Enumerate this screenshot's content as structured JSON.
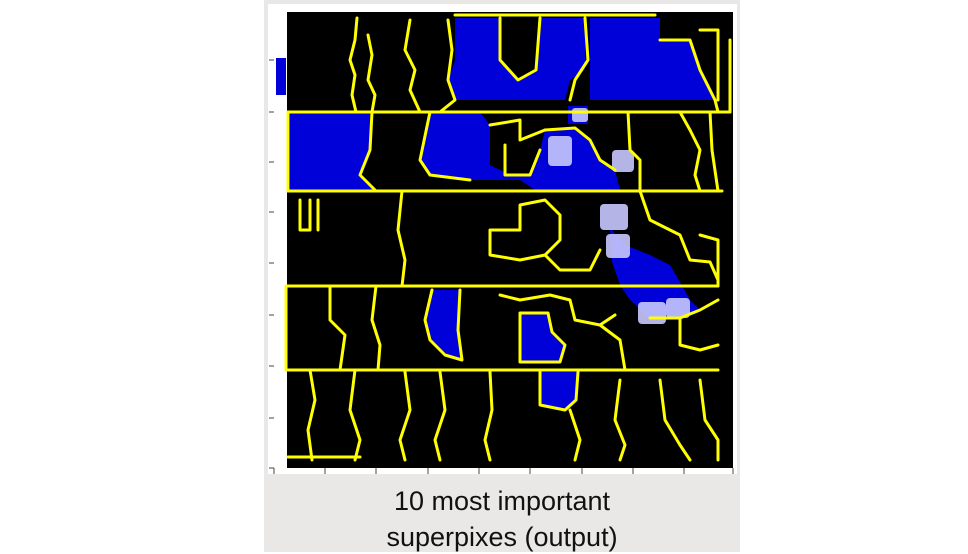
{
  "caption": {
    "line1": "10 most important",
    "line2": "superpixes (output)"
  },
  "colors": {
    "background": "#000000",
    "boundary": "#ffff00",
    "selected_superpixel": "#0000d8",
    "highlight": "#c8c8ff",
    "panel": "#e9e8e6"
  },
  "selected_superpixel_count": 10
}
